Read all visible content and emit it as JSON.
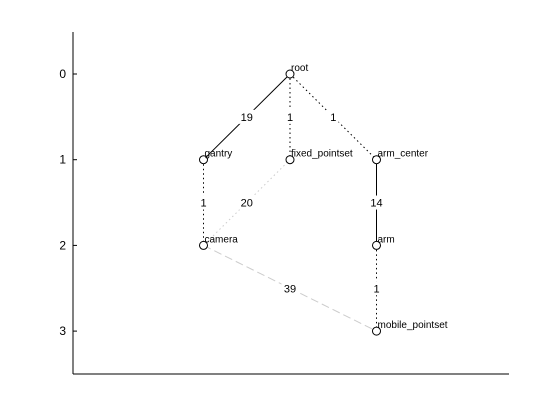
{
  "chart_data": {
    "type": "graph",
    "y_ticks": [
      "0",
      "1",
      "2",
      "3"
    ],
    "nodes": [
      {
        "id": "root",
        "label": "root",
        "level": 0,
        "col": 2
      },
      {
        "id": "gantry",
        "label": "gantry",
        "level": 1,
        "col": 1
      },
      {
        "id": "fixed_pointset",
        "label": "fixed_pointset",
        "level": 1,
        "col": 2
      },
      {
        "id": "arm_center",
        "label": "arm_center",
        "level": 1,
        "col": 3
      },
      {
        "id": "camera",
        "label": "camera",
        "level": 2,
        "col": 1
      },
      {
        "id": "arm",
        "label": "arm",
        "level": 2,
        "col": 3
      },
      {
        "id": "mobile_pointset",
        "label": "mobile_pointset",
        "level": 3,
        "col": 3
      }
    ],
    "edges": [
      {
        "from": "root",
        "to": "gantry",
        "label": "19",
        "style": "solid",
        "color": "#000000"
      },
      {
        "from": "root",
        "to": "fixed_pointset",
        "label": "1",
        "style": "dotted",
        "color": "#000000"
      },
      {
        "from": "root",
        "to": "arm_center",
        "label": "1",
        "style": "dotted",
        "color": "#000000"
      },
      {
        "from": "gantry",
        "to": "camera",
        "label": "1",
        "style": "dotted",
        "color": "#000000"
      },
      {
        "from": "camera",
        "to": "fixed_pointset",
        "label": "20",
        "style": "dotted",
        "color": "#cccccc"
      },
      {
        "from": "arm_center",
        "to": "arm",
        "label": "14",
        "style": "solid",
        "color": "#000000"
      },
      {
        "from": "arm",
        "to": "mobile_pointset",
        "label": "1",
        "style": "dotted",
        "color": "#000000"
      },
      {
        "from": "camera",
        "to": "mobile_pointset",
        "label": "39",
        "style": "dashed",
        "color": "#cccccc"
      }
    ]
  }
}
